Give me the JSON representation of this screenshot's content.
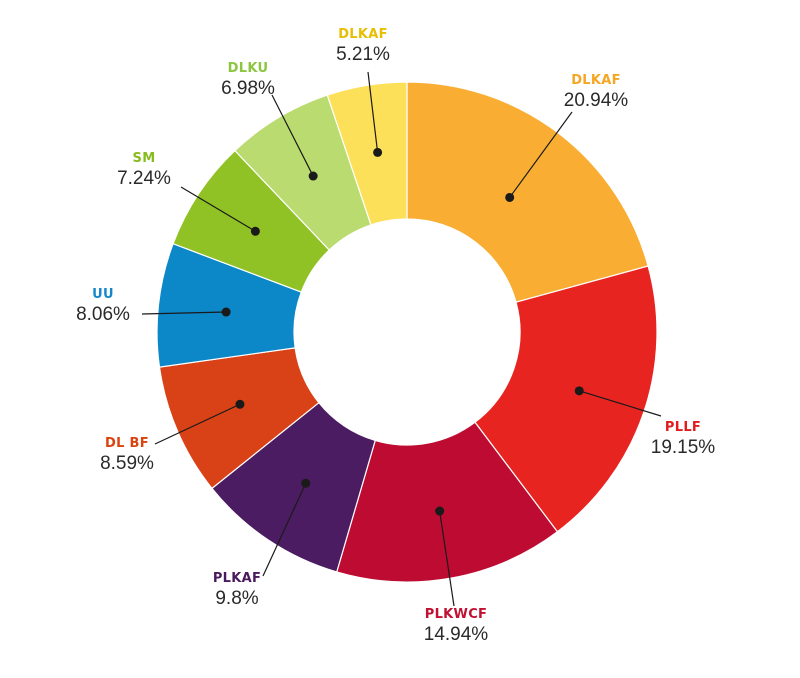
{
  "chart_data": {
    "type": "pie",
    "style": "donut",
    "slices": [
      {
        "label": "DLKAF",
        "value": 20.94,
        "percent_label": "20.94%",
        "color": "#F9AE33"
      },
      {
        "label": "PLLF",
        "value": 19.15,
        "percent_label": "19.15%",
        "color": "#E72420"
      },
      {
        "label": "PLKWCF",
        "value": 14.94,
        "percent_label": "14.94%",
        "color": "#BD0B32"
      },
      {
        "label": "PLKAF",
        "value": 9.8,
        "percent_label": "9.8%",
        "color": "#4B1C61"
      },
      {
        "label": "DL BF",
        "value": 8.59,
        "percent_label": "8.59%",
        "color": "#D94216"
      },
      {
        "label": "UU",
        "value": 8.06,
        "percent_label": "8.06%",
        "color": "#0C87C8"
      },
      {
        "label": "SM",
        "value": 7.24,
        "percent_label": "7.24%",
        "color": "#90C225"
      },
      {
        "label": "DLKU",
        "value": 6.98,
        "percent_label": "6.98%",
        "color": "#BADB6F"
      },
      {
        "label": "DLKAF",
        "value": 5.21,
        "percent_label": "5.21%",
        "color": "#FDE05A"
      }
    ],
    "label_colors": [
      "#F5A623",
      "#E21C1C",
      "#C21030",
      "#4A1A5E",
      "#D9430F",
      "#1588C9",
      "#87BC1E",
      "#8CC63F",
      "#E8BE00"
    ],
    "start_angle": "12 o'clock",
    "direction": "clockwise"
  }
}
